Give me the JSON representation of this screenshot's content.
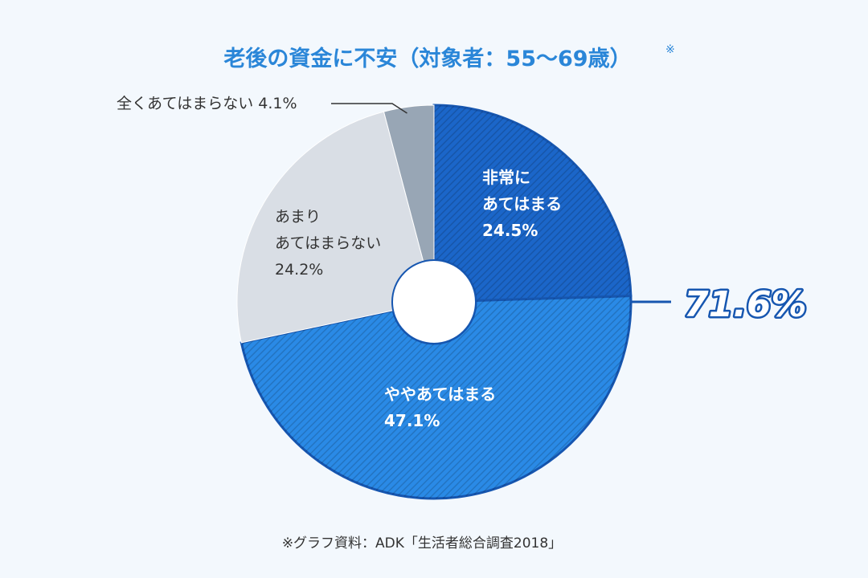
{
  "chart_data": {
    "type": "pie",
    "title": "老後の資金に不安（対象者：55〜69歳）",
    "title_note": "※",
    "center_hole": true,
    "start_angle_deg": 0,
    "direction": "clockwise",
    "slices": [
      {
        "label_lines": [
          "非常に",
          "あてはまる"
        ],
        "value": 24.5,
        "value_text": "24.5%",
        "color": "#1b66c9",
        "hatched": true,
        "label_style": "inside"
      },
      {
        "label_lines": [
          "ややあてはまる"
        ],
        "value": 47.1,
        "value_text": "47.1%",
        "color": "#2a8ae6",
        "hatched": true,
        "label_style": "inside"
      },
      {
        "label_lines": [
          "あまり",
          "あてはまらない"
        ],
        "value": 24.2,
        "value_text": "24.2%",
        "color": "#d9dee5",
        "hatched": false,
        "label_style": "inside-dark"
      },
      {
        "label_lines": [
          "全くあてはまらない"
        ],
        "value": 4.1,
        "value_text": "4.1%",
        "color": "#98a6b5",
        "hatched": false,
        "label_style": "callout"
      }
    ],
    "combined_total": {
      "value": 71.6,
      "text": "71.6%",
      "covers_slices": [
        0,
        1
      ]
    },
    "colors": {
      "title": "#2a86d8",
      "stroke": "#1656b0",
      "total_fill": "#ffffff",
      "total_stroke": "#1656b0"
    }
  },
  "source_note": "※グラフ資料：ADK「生活者総合調査2018」"
}
